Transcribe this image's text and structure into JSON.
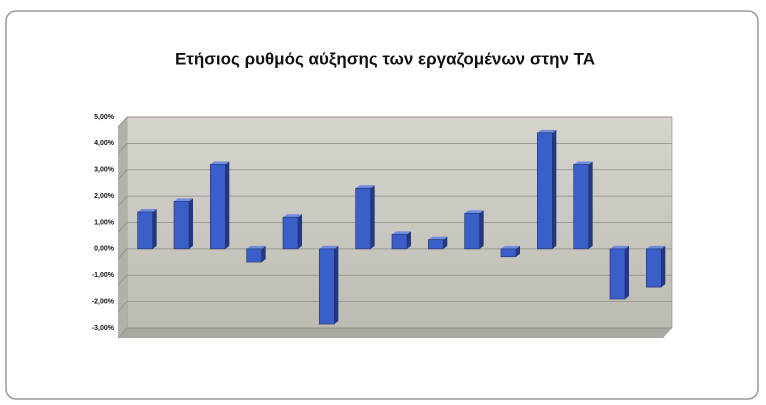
{
  "chart_data": {
    "type": "bar",
    "title": "Ετήσιος ρυθμός αύξησης των εργαζομένων στην ΤΑ",
    "categories": [
      null,
      null,
      null,
      null,
      null,
      null,
      null,
      null,
      null,
      null,
      null,
      null,
      null,
      null,
      null
    ],
    "values": [
      1.4,
      1.8,
      3.2,
      -0.5,
      1.2,
      -2.85,
      2.3,
      0.55,
      0.35,
      1.35,
      -0.3,
      4.4,
      3.2,
      -1.9,
      -1.45
    ],
    "color": "#3b5fc9",
    "ylim": [
      -3,
      5
    ],
    "yticks": [
      {
        "value": -3,
        "label": "-3,00%"
      },
      {
        "value": -2,
        "label": "-2,00%"
      },
      {
        "value": -1,
        "label": "-1,00%"
      },
      {
        "value": 0,
        "label": "0,00%"
      },
      {
        "value": 1,
        "label": "1,00%"
      },
      {
        "value": 2,
        "label": "2,00%"
      },
      {
        "value": 3,
        "label": "3,00%"
      },
      {
        "value": 4,
        "label": "4,00%"
      },
      {
        "value": 5,
        "label": "5,00%"
      }
    ],
    "grid": true
  }
}
